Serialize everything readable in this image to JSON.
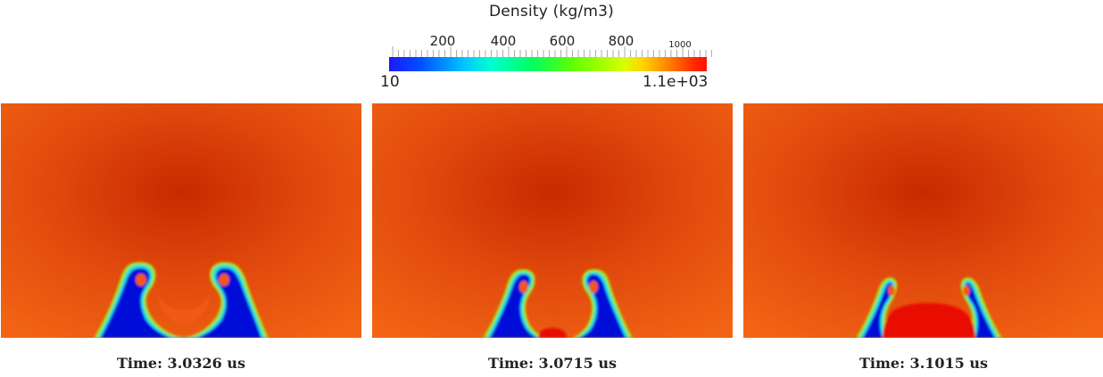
{
  "colorbar": {
    "title": "Density (kg/m3)",
    "tick_labels": [
      "200",
      "400",
      "600",
      "800",
      "1000"
    ],
    "min_label": "10",
    "max_label": "1.1e+03",
    "colors": {
      "low": "#1a1aff",
      "high": "#ff1000"
    }
  },
  "panels": [
    {
      "time_label": "Time: 3.0326 us"
    },
    {
      "time_label": "Time: 3.0715 us"
    },
    {
      "time_label": "Time: 3.1015 us"
    }
  ],
  "colors": {
    "fluid": "#f05a14",
    "fluid_dark": "#c82a00",
    "bubble": "#0010d8",
    "edge_cyan": "#20e0e0",
    "edge_green": "#a8e000",
    "jet": "#e80e00"
  }
}
